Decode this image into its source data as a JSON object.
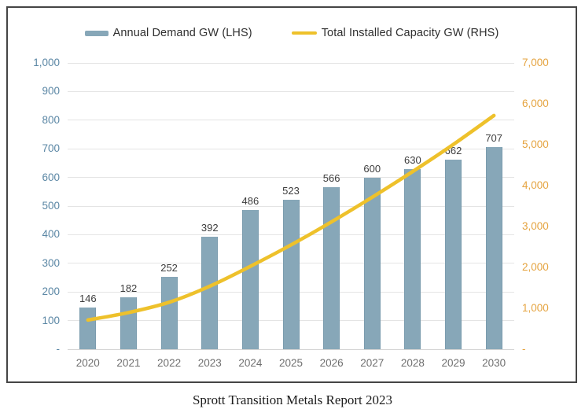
{
  "legend": {
    "items": [
      {
        "label": "Annual Demand GW (LHS)",
        "marker": "bar"
      },
      {
        "label": "Total Installed Capacity GW (RHS)",
        "marker": "line"
      }
    ]
  },
  "caption": "Sprott Transition Metals Report 2023",
  "colors": {
    "bar_fill": "#87a7b8",
    "bar_edge": "#7b9cae",
    "line": "#eec12b",
    "left_axis_text": "#5b87a5",
    "right_axis_text": "#e5a33f",
    "bar_value_text": "#3d3d3d",
    "year_text": "#6f6f6f",
    "gridline": "#e4e4e4"
  },
  "chart_data": {
    "type": "combo",
    "categories": [
      "2020",
      "2021",
      "2022",
      "2023",
      "2024",
      "2025",
      "2026",
      "2027",
      "2028",
      "2029",
      "2030"
    ],
    "series": [
      {
        "name": "Annual Demand GW (LHS)",
        "type": "bar",
        "axis": "left",
        "values": [
          146,
          182,
          252,
          392,
          486,
          523,
          566,
          600,
          630,
          662,
          707
        ]
      },
      {
        "name": "Total Installed Capacity GW (RHS)",
        "type": "line",
        "axis": "right",
        "estimated": true,
        "values": [
          714,
          896,
          1148,
          1540,
          2026,
          2549,
          3115,
          3715,
          4345,
          5007,
          5714
        ]
      }
    ],
    "left_axis": {
      "min": 0,
      "max": 1000,
      "step": 100,
      "tick_labels_top_to_bottom": [
        "1,000",
        "900",
        "800",
        "700",
        "600",
        "500",
        "400",
        "300",
        "200",
        "100",
        "-"
      ]
    },
    "right_axis": {
      "min": 0,
      "max": 7000,
      "step": 1000,
      "tick_labels_top_to_bottom": [
        "7,000",
        "6,000",
        "5,000",
        "4,000",
        "3,000",
        "2,000",
        "1,000",
        "-"
      ]
    },
    "grid": "horizontal",
    "legend_position": "top",
    "show_bar_value_labels": true
  }
}
